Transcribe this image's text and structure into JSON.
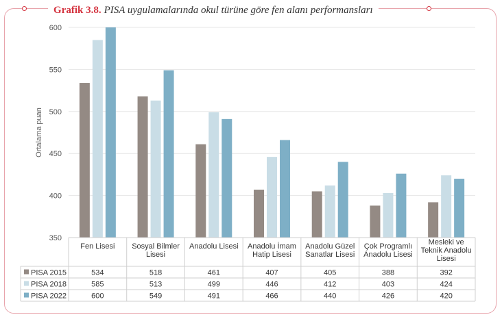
{
  "figure": {
    "label": "Grafik 3.8.",
    "caption": "PISA uygulamalarında okul türüne göre fen alanı performansları"
  },
  "chart_data": {
    "type": "bar",
    "ylabel": "Ortalama puan",
    "ylim": [
      350,
      600
    ],
    "yticks": [
      350,
      400,
      450,
      500,
      550,
      600
    ],
    "grid": true,
    "legend": "table-left",
    "categories": [
      [
        "Fen Lisesi"
      ],
      [
        "Sosyal Bilmler",
        "Lisesi"
      ],
      [
        "Anadolu Lisesi"
      ],
      [
        "Anadolu İmam",
        "Hatip Lisesi"
      ],
      [
        "Anadolu Güzel",
        "Sanatlar Lisesi"
      ],
      [
        "Çok Programlı",
        "Anadolu Lisesi"
      ],
      [
        "Mesleki ve",
        "Teknik Anadolu",
        "Lisesi"
      ]
    ],
    "series": [
      {
        "name": "PISA 2015",
        "color": "#948a84",
        "values": [
          534,
          518,
          461,
          407,
          405,
          388,
          392
        ]
      },
      {
        "name": "PISA 2018",
        "color": "#c9dde6",
        "values": [
          585,
          513,
          499,
          446,
          412,
          403,
          424
        ]
      },
      {
        "name": "PISA 2022",
        "color": "#7eafc6",
        "values": [
          600,
          549,
          491,
          466,
          440,
          426,
          420
        ]
      }
    ]
  },
  "colors": {
    "accent": "#d4333f",
    "grid": "#e6e6e6",
    "table_border": "#cfcfcf"
  }
}
